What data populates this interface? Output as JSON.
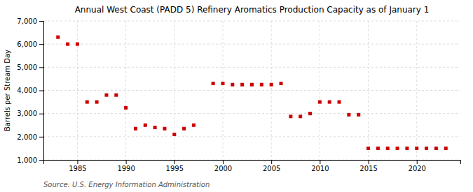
{
  "chart_data": {
    "type": "scatter",
    "title": "Annual West Coast (PADD 5) Refinery Aromatics Production Capacity as of January 1",
    "ylabel": "Barrels per Stream Day",
    "annotation": "Source: U.S. Energy Information Administration",
    "x": [
      1983,
      1984,
      1985,
      1986,
      1987,
      1988,
      1989,
      1990,
      1991,
      1992,
      1993,
      1994,
      1995,
      1996,
      1997,
      1999,
      2000,
      2001,
      2002,
      2003,
      2004,
      2005,
      2006,
      2007,
      2008,
      2009,
      2010,
      2011,
      2012,
      2013,
      2014,
      2015,
      2016,
      2017,
      2018,
      2019,
      2020,
      2021,
      2022,
      2023
    ],
    "values": [
      6300,
      6000,
      6000,
      3500,
      3500,
      3800,
      3800,
      3250,
      2350,
      2500,
      2400,
      2350,
      2100,
      2350,
      2500,
      4300,
      4300,
      4250,
      4250,
      4250,
      4250,
      4250,
      4300,
      2875,
      2875,
      3000,
      3500,
      3500,
      3500,
      2950,
      2950,
      1500,
      1500,
      1500,
      1500,
      1500,
      1500,
      1500,
      1500,
      1500
    ],
    "color": "#cc0000",
    "marker": "square",
    "xlim": [
      1981.5,
      2024.5
    ],
    "xticks": [
      1985,
      1990,
      1995,
      2000,
      2005,
      2010,
      2015,
      2020
    ],
    "ylim": [
      1000,
      7000
    ],
    "yticks": [
      {
        "value": 1000,
        "label": "1,000"
      },
      {
        "value": 2000,
        "label": "2,000"
      },
      {
        "value": 3000,
        "label": "3,000"
      },
      {
        "value": 4000,
        "label": "4,000"
      },
      {
        "value": 5000,
        "label": "5,000"
      },
      {
        "value": 6000,
        "label": "6,000"
      },
      {
        "value": 7000,
        "label": "7,000"
      }
    ],
    "grid": true
  }
}
